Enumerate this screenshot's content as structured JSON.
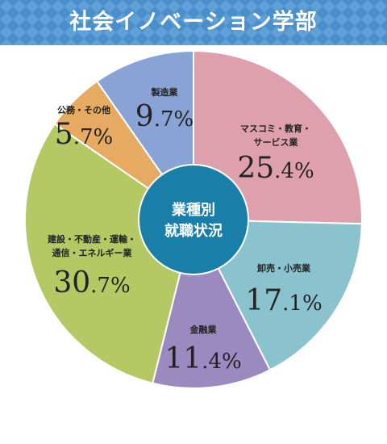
{
  "header": {
    "title": "社会イノベーション学部"
  },
  "center": {
    "line1": "業種別",
    "line2": "就職状況"
  },
  "colors": {
    "banner": "#4a8fcb",
    "banner_pattern": "#5e9fd6",
    "center": "#1a7fa8"
  },
  "chart_data": {
    "type": "pie",
    "title": "",
    "start": "12 o'clock",
    "direction": "clockwise",
    "slices": [
      {
        "label_lines": [
          "マスコミ・教育・",
          "サービス業"
        ],
        "value": 25.4,
        "int": "25",
        "dec": ".4%",
        "color": "#dea0ac"
      },
      {
        "label_lines": [
          "卸売・小売業"
        ],
        "value": 17.1,
        "int": "17",
        "dec": ".1%",
        "color": "#8ac3cd"
      },
      {
        "label_lines": [
          "金融業"
        ],
        "value": 11.4,
        "int": "11",
        "dec": ".4%",
        "color": "#9b8ac0"
      },
      {
        "label_lines": [
          "建設・不動産・運輸・",
          "通信・エネルギー業"
        ],
        "value": 30.7,
        "int": "30",
        "dec": ".7%",
        "color": "#b4c864"
      },
      {
        "label_lines": [
          "公務・その他"
        ],
        "value": 5.7,
        "int": "5",
        "dec": ".7%",
        "color": "#e6aa62"
      },
      {
        "label_lines": [
          "製造業"
        ],
        "value": 9.7,
        "int": "9",
        "dec": ".7%",
        "color": "#8aa3d6"
      }
    ]
  }
}
